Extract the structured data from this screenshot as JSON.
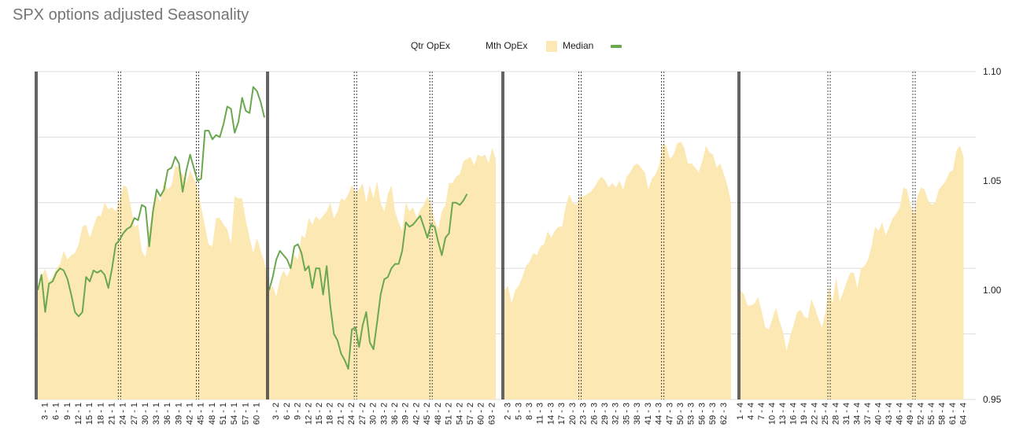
{
  "title": "SPX options adjusted Seasonality",
  "legend": {
    "qtr": "Qtr OpEx",
    "mth": "Mth OpEx",
    "median": "Median",
    "median_color": "#fce8b2",
    "line_color": "#6aa84f"
  },
  "chart_data": {
    "type": "area",
    "title": "SPX options adjusted Seasonality",
    "xlabel": "",
    "ylabel": "",
    "ylim": [
      0.95,
      1.1
    ],
    "y_ticks": [
      0.95,
      1.0,
      1.05,
      1.1
    ],
    "y_tick_labels": [
      "0.95",
      "1.00",
      "1.05",
      "1.10"
    ],
    "grid": true,
    "legend_position": "top",
    "x_tick_labels": [
      [
        "3 - 1",
        "6 - 1",
        "9 - 1",
        "12 - 1",
        "15 - 1",
        "18 - 1",
        "21 - 1",
        "24 - 1",
        "27 - 1",
        "30 - 1",
        "33 - 1",
        "36 - 1",
        "39 - 1",
        "42 - 1",
        "45 - 1",
        "48 - 1",
        "51 - 1",
        "54 - 1",
        "57 - 1",
        "60 - 1"
      ],
      [
        "3 - 2",
        "6 - 2",
        "9 - 2",
        "12 - 2",
        "15 - 2",
        "18 - 2",
        "21 - 2",
        "24 - 2",
        "27 - 2",
        "30 - 2",
        "33 - 2",
        "36 - 2",
        "39 - 2",
        "42 - 2",
        "45 - 2",
        "48 - 2",
        "51 - 2",
        "54 - 2",
        "57 - 2",
        "60 - 2",
        "63 - 2"
      ],
      [
        "2 - 3",
        "5 - 3",
        "8 - 3",
        "11 - 3",
        "14 - 3",
        "17 - 3",
        "20 - 3",
        "23 - 3",
        "26 - 3",
        "29 - 3",
        "32 - 3",
        "35 - 3",
        "38 - 3",
        "41 - 3",
        "44 - 3",
        "47 - 3",
        "50 - 3",
        "53 - 3",
        "56 - 3",
        "59 - 3",
        "62 - 3"
      ],
      [
        "1 - 4",
        "4 - 4",
        "7 - 4",
        "10 - 4",
        "13 - 4",
        "16 - 4",
        "19 - 4",
        "22 - 4",
        "25 - 4",
        "28 - 4",
        "31 - 4",
        "34 - 4",
        "37 - 4",
        "40 - 4",
        "43 - 4",
        "46 - 4",
        "49 - 4",
        "52 - 4",
        "55 - 4",
        "58 - 4",
        "61 - 4",
        "64 - 4"
      ]
    ],
    "quarters": [
      {
        "quarter": 1,
        "days": 61,
        "mth_opex_days": [
          22,
          43
        ],
        "median": [
          1.0,
          1.006,
          1.01,
          1.004,
          1.006,
          1.01,
          1.012,
          1.018,
          1.014,
          1.016,
          1.017,
          1.021,
          1.029,
          1.03,
          1.024,
          1.029,
          1.034,
          1.034,
          1.04,
          1.037,
          1.038,
          1.036,
          1.041,
          1.048,
          1.047,
          1.039,
          1.029,
          1.03,
          1.018,
          1.015,
          1.027,
          1.039,
          1.044,
          1.04,
          1.05,
          1.046,
          1.048,
          1.057,
          1.056,
          1.053,
          1.049,
          1.055,
          1.051,
          1.047,
          1.038,
          1.029,
          1.021,
          1.02,
          1.033,
          1.033,
          1.03,
          1.028,
          1.021,
          1.043,
          1.042,
          1.042,
          1.032,
          1.024,
          1.017,
          1.024,
          1.018,
          1.013,
          1.004
        ],
        "current": [
          1.0,
          1.007,
          0.99,
          1.003,
          1.004,
          1.008,
          1.01,
          1.009,
          1.005,
          0.998,
          0.99,
          0.988,
          0.99,
          1.006,
          1.004,
          1.009,
          1.008,
          1.009,
          1.007,
          1.001,
          1.01,
          1.021,
          1.023,
          1.026,
          1.028,
          1.029,
          1.033,
          1.032,
          1.039,
          1.038,
          1.02,
          1.036,
          1.046,
          1.043,
          1.046,
          1.055,
          1.056,
          1.061,
          1.058,
          1.045,
          1.055,
          1.062,
          1.056,
          1.05,
          1.051,
          1.073,
          1.073,
          1.069,
          1.071,
          1.07,
          1.076,
          1.084,
          1.083,
          1.072,
          1.077,
          1.088,
          1.082,
          1.081,
          1.093,
          1.091,
          1.086,
          1.079
        ]
      },
      {
        "quarter": 2,
        "days": 63,
        "mth_opex_days": [
          24,
          45
        ],
        "median": [
          1.0,
          1.002,
          0.997,
          1.005,
          1.009,
          1.006,
          1.01,
          1.016,
          1.014,
          1.025,
          1.024,
          1.033,
          1.03,
          1.034,
          1.032,
          1.034,
          1.036,
          1.04,
          1.033,
          1.036,
          1.042,
          1.041,
          1.044,
          1.048,
          1.045,
          1.046,
          1.049,
          1.04,
          1.048,
          1.042,
          1.05,
          1.04,
          1.036,
          1.044,
          1.048,
          1.036,
          1.031,
          1.027,
          1.04,
          1.036,
          1.038,
          1.033,
          1.037,
          1.039,
          1.043,
          1.039,
          1.032,
          1.028,
          1.036,
          1.039,
          1.049,
          1.049,
          1.052,
          1.053,
          1.059,
          1.06,
          1.061,
          1.057,
          1.062,
          1.061,
          1.062,
          1.058,
          1.065,
          1.06
        ],
        "current": [
          1.0,
          1.006,
          1.014,
          1.018,
          1.016,
          1.014,
          1.01,
          1.02,
          1.021,
          1.017,
          1.009,
          1.011,
          1.001,
          1.01,
          1.01,
          0.998,
          1.011,
          0.993,
          0.98,
          0.977,
          0.971,
          0.968,
          0.964,
          0.982,
          0.983,
          0.974,
          0.984,
          0.99,
          0.976,
          0.973,
          0.985,
          0.998,
          1.005,
          1.006,
          1.01,
          1.012,
          1.012,
          1.018,
          1.031,
          1.029,
          1.03,
          1.032,
          1.034,
          1.029,
          1.024,
          1.03,
          1.029,
          1.022,
          1.016,
          1.024,
          1.026,
          1.04,
          1.04,
          1.039,
          1.041,
          1.044
        ]
      },
      {
        "quarter": 3,
        "days": 63,
        "mth_opex_days": [
          21,
          44
        ],
        "median": [
          1.0,
          1.002,
          0.994,
          1.0,
          1.002,
          1.006,
          1.011,
          1.013,
          1.017,
          1.016,
          1.02,
          1.021,
          1.027,
          1.024,
          1.027,
          1.029,
          1.029,
          1.038,
          1.044,
          1.04,
          1.039,
          1.043,
          1.043,
          1.044,
          1.045,
          1.047,
          1.05,
          1.052,
          1.05,
          1.047,
          1.049,
          1.047,
          1.05,
          1.046,
          1.052,
          1.054,
          1.057,
          1.058,
          1.056,
          1.054,
          1.046,
          1.051,
          1.053,
          1.057,
          1.067,
          1.066,
          1.06,
          1.062,
          1.067,
          1.068,
          1.065,
          1.058,
          1.058,
          1.056,
          1.054,
          1.059,
          1.066,
          1.063,
          1.062,
          1.056,
          1.058,
          1.053,
          1.048,
          1.04
        ]
      },
      {
        "quarter": 4,
        "days": 64,
        "mth_opex_days": [
          25,
          49
        ],
        "median": [
          1.0,
          0.998,
          0.993,
          0.993,
          0.994,
          0.997,
          0.99,
          0.983,
          0.982,
          0.987,
          0.992,
          0.986,
          0.981,
          0.972,
          0.979,
          0.984,
          0.99,
          0.991,
          0.988,
          0.987,
          0.996,
          0.992,
          0.987,
          0.983,
          0.99,
          1.002,
          0.994,
          1.006,
          0.995,
          0.999,
          1.004,
          1.008,
          1.008,
          1.001,
          1.01,
          1.011,
          1.014,
          1.02,
          1.029,
          1.027,
          1.031,
          1.025,
          1.029,
          1.033,
          1.035,
          1.038,
          1.047,
          1.046,
          1.039,
          1.035,
          1.043,
          1.047,
          1.046,
          1.041,
          1.039,
          1.04,
          1.046,
          1.048,
          1.05,
          1.054,
          1.055,
          1.064,
          1.066,
          1.061
        ]
      }
    ]
  }
}
